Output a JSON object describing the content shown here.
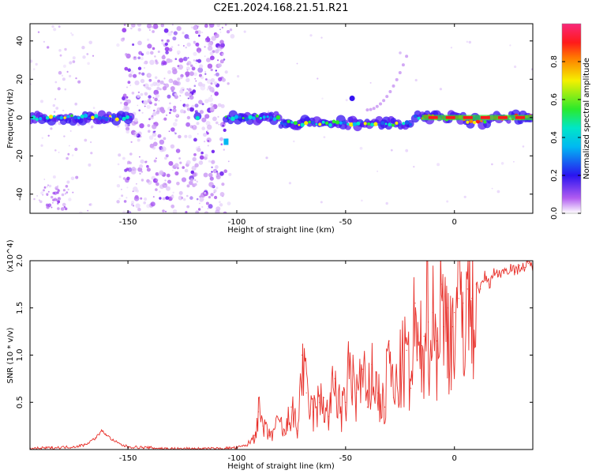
{
  "title": "C2E1.2024.168.21.51.R21",
  "chart_data": [
    {
      "type": "heatmap",
      "name": "spectrogram",
      "xlabel": "Height of straight line (km)",
      "ylabel": "Frequency (Hz)",
      "xlim": [
        -195,
        36
      ],
      "ylim": [
        -50,
        49
      ],
      "x_ticks": [
        -150,
        -100,
        -50,
        0
      ],
      "x_tick_labels": [
        "-150",
        "-100",
        "-50",
        "0"
      ],
      "y_ticks": [
        -40,
        -20,
        0,
        20,
        40
      ],
      "y_tick_labels": [
        "-40",
        "-20",
        "0",
        "20",
        "40"
      ],
      "colorbar": {
        "label": "Normalized spectral amplitude",
        "range": [
          0,
          1
        ],
        "ticks": [
          0.0,
          0.2,
          0.4,
          0.6,
          0.8
        ],
        "tick_labels": [
          "0.0",
          "0.2",
          "0.4",
          "0.6",
          "0.8"
        ],
        "colormap": "rainbow (white-violet-blue-cyan-green-yellow-red-pink)"
      },
      "features": {
        "main_band_frequency_hz": 0,
        "broadband_noise_region_km": [
          -152,
          -105
        ],
        "noise_region_left_km": [
          -195,
          -165
        ],
        "diagonal_tone": {
          "x": [
            -40,
            -22
          ],
          "y": [
            4,
            32
          ]
        },
        "strongest_segment_km": [
          -15,
          36
        ]
      }
    },
    {
      "type": "line",
      "name": "snr",
      "xlabel": "Height of straight line (km)",
      "ylabel": "SNR (10 * v/v)",
      "scale_label": "(x10^4)",
      "xlim": [
        -195,
        36
      ],
      "ylim": [
        0,
        2.0
      ],
      "x_ticks": [
        -150,
        -100,
        -50,
        0
      ],
      "x_tick_labels": [
        "-150",
        "-100",
        "-50",
        "0"
      ],
      "y_ticks": [
        0.5,
        1.0,
        1.5,
        2.0
      ],
      "y_tick_labels": [
        "0.5",
        "1.0",
        "1.5",
        "2.0"
      ],
      "color": "#e8302a",
      "series": [
        {
          "x": [
            -195,
            -185,
            -175,
            -170,
            -165,
            -162,
            -160,
            -157,
            -153,
            -150,
            -140,
            -130,
            -120,
            -110,
            -100,
            -95,
            -92,
            -90,
            -88,
            -85,
            -80,
            -78,
            -75,
            -72,
            -70,
            -68,
            -65,
            -62,
            -60,
            -58,
            -55,
            -52,
            -50,
            -48,
            -45,
            -42,
            -40,
            -38,
            -35,
            -32,
            -30,
            -28,
            -25,
            -22,
            -20,
            -18,
            -17,
            -15,
            -14,
            -13,
            -12,
            -10,
            -8,
            -6,
            -5,
            -3,
            -1,
            0,
            2,
            4,
            6,
            8,
            10,
            12,
            14,
            16,
            18,
            20,
            22,
            24,
            26,
            28,
            30,
            32,
            34,
            36
          ],
          "y": [
            0.01,
            0.02,
            0.03,
            0.05,
            0.12,
            0.2,
            0.16,
            0.1,
            0.05,
            0.03,
            0.02,
            0.01,
            0.01,
            0.01,
            0.02,
            0.05,
            0.15,
            0.4,
            0.25,
            0.15,
            0.3,
            0.15,
            0.45,
            0.2,
            1.0,
            0.6,
            0.4,
            0.5,
            0.55,
            0.35,
            0.75,
            0.4,
            0.5,
            0.95,
            0.6,
            0.85,
            0.45,
            0.9,
            0.6,
            0.45,
            1.15,
            0.55,
            0.85,
            1.05,
            0.65,
            1.55,
            0.95,
            1.1,
            1.2,
            2.0,
            1.35,
            1.45,
            1.15,
            1.75,
            1.3,
            1.5,
            1.3,
            1.45,
            1.6,
            1.55,
            1.7,
            1.6,
            1.75,
            1.7,
            1.85,
            1.75,
            1.9,
            1.85,
            1.9,
            1.9,
            1.95,
            1.88,
            1.95,
            1.93,
            1.97,
            1.95
          ]
        }
      ]
    }
  ]
}
